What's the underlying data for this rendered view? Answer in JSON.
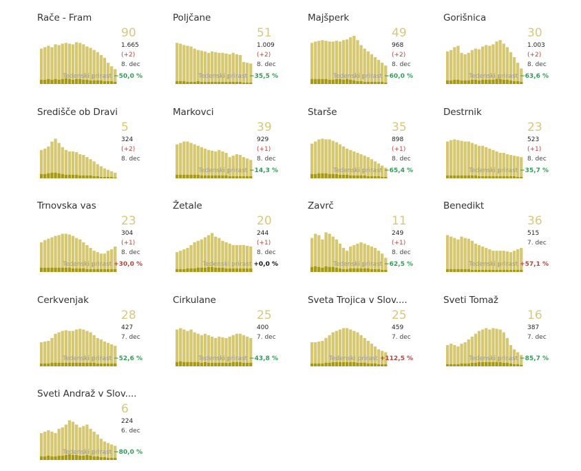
{
  "colors": {
    "bar": "#d6c870",
    "bar_dark": "#a79912",
    "big_num": "#d8c87a",
    "increase": "#b4453b",
    "decrease": "#2e9e55"
  },
  "weekly_label": "Tedenski prirast",
  "chart_data": [
    {
      "type": "bar",
      "title": "Rače - Fram",
      "values": [
        50,
        52,
        54,
        52,
        56,
        55,
        57,
        58,
        57,
        56,
        59,
        58,
        56,
        53,
        51,
        48,
        45,
        41,
        37,
        30,
        25,
        21
      ],
      "dark": [
        6,
        6,
        7,
        6,
        7,
        6,
        7,
        8,
        7,
        6,
        7,
        7,
        6,
        6,
        5,
        5,
        5,
        5,
        4,
        4,
        4,
        3
      ],
      "big": "90",
      "total": "1.665",
      "delta": "(+2)",
      "date": "8. dec",
      "weekly": "−50,0 %",
      "trend": "neg"
    },
    {
      "type": "bar",
      "title": "Poljčane",
      "values": [
        58,
        57,
        55,
        54,
        53,
        50,
        48,
        47,
        46,
        44,
        46,
        45,
        44,
        44,
        43,
        42,
        44,
        42,
        41,
        31,
        30,
        29
      ],
      "dark": [
        4,
        4,
        4,
        3,
        3,
        3,
        4,
        3,
        3,
        3,
        3,
        3,
        3,
        3,
        3,
        3,
        3,
        3,
        3,
        2,
        2,
        2
      ],
      "big": "51",
      "total": "1.009",
      "delta": "(+2)",
      "date": "8. dec",
      "weekly": "−35,5 %",
      "trend": "neg"
    },
    {
      "type": "bar",
      "title": "Majšperk",
      "values": [
        58,
        60,
        61,
        62,
        61,
        60,
        60,
        61,
        60,
        62,
        63,
        66,
        68,
        62,
        55,
        50,
        46,
        42,
        38,
        34,
        30,
        26
      ],
      "dark": [
        7,
        7,
        7,
        7,
        7,
        6,
        6,
        7,
        7,
        6,
        7,
        6,
        5,
        4,
        4,
        3,
        3,
        3,
        3,
        3,
        3,
        2
      ],
      "big": "49",
      "total": "968",
      "delta": "(+2)",
      "date": "8. dec",
      "weekly": "−60,0 %",
      "trend": "neg"
    },
    {
      "type": "bar",
      "title": "Gorišnica",
      "values": [
        46,
        48,
        52,
        54,
        44,
        42,
        44,
        48,
        50,
        49,
        53,
        55,
        54,
        56,
        60,
        62,
        57,
        52,
        45,
        38,
        30,
        22
      ],
      "dark": [
        5,
        5,
        6,
        6,
        5,
        5,
        5,
        6,
        6,
        5,
        6,
        6,
        6,
        6,
        7,
        7,
        6,
        6,
        5,
        4,
        4,
        3
      ],
      "big": "30",
      "total": "1.003",
      "delta": "(+2)",
      "date": "8. dec",
      "weekly": "−63,6 %",
      "trend": "neg"
    },
    {
      "type": "bar",
      "title": "Središče ob Dravi",
      "values": [
        40,
        42,
        45,
        52,
        56,
        50,
        44,
        40,
        38,
        38,
        37,
        34,
        33,
        30,
        27,
        24,
        20,
        17,
        14,
        12,
        10,
        8
      ],
      "dark": [
        6,
        6,
        7,
        8,
        8,
        7,
        6,
        5,
        5,
        5,
        5,
        4,
        4,
        4,
        4,
        3,
        3,
        2,
        2,
        2,
        2,
        1
      ],
      "big": "5",
      "total": "324",
      "delta": "(+2)",
      "date": "8. dec",
      "weekly": "",
      "trend": "neg"
    },
    {
      "type": "bar",
      "title": "Markovci",
      "values": [
        48,
        50,
        52,
        52,
        50,
        48,
        46,
        44,
        42,
        40,
        39,
        38,
        40,
        38,
        36,
        30,
        32,
        34,
        33,
        30,
        28,
        26
      ],
      "dark": [
        5,
        5,
        5,
        5,
        5,
        5,
        5,
        4,
        4,
        4,
        4,
        4,
        4,
        4,
        4,
        3,
        3,
        3,
        3,
        3,
        3,
        3
      ],
      "big": "39",
      "total": "929",
      "delta": "(+1)",
      "date": "8. dec",
      "weekly": "−14,3 %",
      "trend": "neg"
    },
    {
      "type": "bar",
      "title": "Starše",
      "values": [
        49,
        52,
        55,
        56,
        55,
        55,
        53,
        51,
        48,
        45,
        42,
        40,
        38,
        36,
        34,
        32,
        30,
        27,
        24,
        21,
        18,
        15
      ],
      "dark": [
        6,
        6,
        7,
        7,
        7,
        6,
        6,
        6,
        5,
        5,
        5,
        4,
        4,
        4,
        4,
        4,
        3,
        3,
        3,
        3,
        2,
        2
      ],
      "big": "35",
      "total": "898",
      "delta": "(+1)",
      "date": "8. dec",
      "weekly": "−65,4 %",
      "trend": "neg"
    },
    {
      "type": "bar",
      "title": "Destrnik",
      "values": [
        52,
        54,
        55,
        54,
        53,
        52,
        52,
        50,
        48,
        46,
        46,
        44,
        42,
        40,
        38,
        36,
        36,
        34,
        33,
        32,
        31,
        30
      ],
      "dark": [
        4,
        4,
        4,
        4,
        4,
        4,
        4,
        4,
        4,
        3,
        3,
        3,
        3,
        3,
        3,
        3,
        3,
        3,
        3,
        3,
        2,
        2
      ],
      "big": "23",
      "total": "523",
      "delta": "(+1)",
      "date": "8. dec",
      "weekly": "−35,7 %",
      "trend": "neg"
    },
    {
      "type": "bar",
      "title": "Trnovska vas",
      "values": [
        42,
        45,
        47,
        49,
        51,
        52,
        54,
        54,
        53,
        51,
        48,
        46,
        42,
        38,
        34,
        30,
        28,
        26,
        26,
        30,
        32,
        36
      ],
      "dark": [
        6,
        6,
        6,
        6,
        6,
        6,
        6,
        6,
        6,
        5,
        5,
        5,
        5,
        4,
        4,
        4,
        4,
        4,
        4,
        4,
        4,
        4
      ],
      "big": "23",
      "total": "304",
      "delta": "(+1)",
      "date": "8. dec",
      "weekly": "+30,0 %",
      "trend": "pos"
    },
    {
      "type": "bar",
      "title": "Žetale",
      "values": [
        28,
        30,
        32,
        34,
        38,
        42,
        44,
        46,
        49,
        52,
        55,
        50,
        48,
        44,
        42,
        40,
        38,
        38,
        38,
        38,
        37,
        36
      ],
      "dark": [
        4,
        4,
        4,
        5,
        5,
        5,
        6,
        6,
        6,
        7,
        7,
        6,
        6,
        6,
        5,
        5,
        5,
        5,
        5,
        5,
        5,
        5
      ],
      "big": "20",
      "total": "244",
      "delta": "(+1)",
      "date": "8. dec",
      "weekly": "+0,0 %",
      "trend": "zero"
    },
    {
      "type": "bar",
      "title": "Zavrč",
      "values": [
        48,
        54,
        52,
        46,
        56,
        54,
        50,
        46,
        40,
        34,
        30,
        36,
        38,
        40,
        42,
        40,
        38,
        36,
        34,
        30,
        26,
        20
      ],
      "dark": [
        7,
        8,
        7,
        6,
        8,
        7,
        7,
        6,
        5,
        4,
        4,
        5,
        5,
        5,
        5,
        5,
        5,
        4,
        4,
        4,
        3,
        3
      ],
      "big": "11",
      "total": "249",
      "delta": "(+1)",
      "date": "8. dec",
      "weekly": "−62,5 %",
      "trend": "neg"
    },
    {
      "type": "bar",
      "title": "Benedikt",
      "values": [
        52,
        50,
        48,
        46,
        50,
        48,
        47,
        44,
        40,
        38,
        36,
        34,
        32,
        30,
        30,
        30,
        30,
        29,
        28,
        30,
        32,
        34
      ],
      "dark": [
        4,
        4,
        4,
        4,
        4,
        4,
        4,
        3,
        3,
        3,
        3,
        3,
        3,
        3,
        3,
        3,
        3,
        3,
        3,
        3,
        3,
        3
      ],
      "big": "36",
      "total": "515",
      "delta": "",
      "date": "7. dec",
      "weekly": "+57,1 %",
      "trend": "pos"
    },
    {
      "type": "bar",
      "title": "Cerkvenjak",
      "values": [
        34,
        35,
        36,
        40,
        46,
        48,
        50,
        51,
        50,
        50,
        52,
        53,
        52,
        50,
        48,
        44,
        40,
        38,
        35,
        33,
        31,
        29
      ],
      "dark": [
        4,
        4,
        4,
        5,
        5,
        5,
        5,
        5,
        5,
        5,
        5,
        5,
        5,
        5,
        5,
        5,
        4,
        4,
        4,
        4,
        4,
        4
      ],
      "big": "28",
      "total": "427",
      "delta": "",
      "date": "7. dec",
      "weekly": "−52,6 %",
      "trend": "neg"
    },
    {
      "type": "bar",
      "title": "Cirkulane",
      "values": [
        52,
        54,
        52,
        50,
        52,
        48,
        46,
        44,
        46,
        44,
        42,
        40,
        42,
        41,
        40,
        42,
        44,
        46,
        46,
        44,
        42,
        40
      ],
      "dark": [
        6,
        7,
        6,
        6,
        6,
        6,
        6,
        5,
        6,
        5,
        5,
        5,
        5,
        5,
        5,
        5,
        6,
        6,
        6,
        5,
        5,
        5
      ],
      "big": "25",
      "total": "400",
      "delta": "",
      "date": "7. dec",
      "weekly": "−43,8 %",
      "trend": "neg"
    },
    {
      "type": "bar",
      "title": "Sveta Trojica v Slov....",
      "values": [
        34,
        34,
        35,
        36,
        40,
        44,
        48,
        50,
        52,
        54,
        54,
        52,
        50,
        48,
        44,
        40,
        36,
        32,
        28,
        24,
        22,
        20
      ],
      "dark": [
        4,
        4,
        4,
        4,
        5,
        5,
        6,
        6,
        6,
        6,
        6,
        6,
        6,
        5,
        5,
        5,
        4,
        4,
        4,
        3,
        3,
        3
      ],
      "big": "25",
      "total": "459",
      "delta": "",
      "date": "7. dec",
      "weekly": "+112,5 %",
      "trend": "pos"
    },
    {
      "type": "bar",
      "title": "Sveti Tomaž",
      "values": [
        30,
        32,
        30,
        28,
        32,
        34,
        38,
        42,
        46,
        50,
        52,
        54,
        52,
        54,
        53,
        52,
        48,
        40,
        30,
        24,
        20,
        16
      ],
      "dark": [
        3,
        3,
        3,
        3,
        4,
        4,
        4,
        5,
        5,
        6,
        6,
        6,
        6,
        6,
        6,
        6,
        5,
        5,
        4,
        3,
        3,
        2
      ],
      "big": "16",
      "total": "387",
      "delta": "",
      "date": "7. dec",
      "weekly": "−85,7 %",
      "trend": "neg"
    },
    {
      "type": "bar",
      "title": "Sveti Andraž v Slov....",
      "values": [
        38,
        40,
        42,
        40,
        38,
        44,
        46,
        50,
        56,
        54,
        50,
        46,
        48,
        50,
        44,
        40,
        36,
        30,
        26,
        24,
        22,
        20
      ],
      "dark": [
        5,
        5,
        6,
        5,
        5,
        6,
        6,
        7,
        8,
        7,
        7,
        6,
        6,
        7,
        6,
        5,
        5,
        4,
        4,
        3,
        3,
        3
      ],
      "big": "6",
      "total": "224",
      "delta": "",
      "date": "6. dec",
      "weekly": "−80,0 %",
      "trend": "neg"
    }
  ]
}
